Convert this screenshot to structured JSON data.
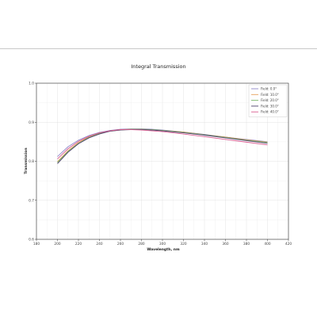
{
  "chart_data": {
    "type": "line",
    "title": "Integral Transmission",
    "xlabel": "Wavelength, nm",
    "ylabel": "Transmission",
    "xlim": [
      180,
      420
    ],
    "ylim": [
      0.6,
      1.0
    ],
    "xticks": [
      "180",
      "200",
      "220",
      "240",
      "260",
      "280",
      "300",
      "320",
      "340",
      "360",
      "380",
      "400",
      "420"
    ],
    "yticks": [
      "0.6",
      "0.7",
      "0.8",
      "0.9",
      "1.0"
    ],
    "grid": true,
    "legend_position": "top-right",
    "x": [
      200,
      210,
      220,
      230,
      240,
      250,
      260,
      270,
      280,
      290,
      300,
      320,
      340,
      360,
      380,
      400
    ],
    "series": [
      {
        "name": "Field: 0.0°",
        "color": "#8e86c9",
        "values": [
          0.812,
          0.837,
          0.854,
          0.866,
          0.874,
          0.879,
          0.882,
          0.883,
          0.883,
          0.882,
          0.88,
          0.875,
          0.869,
          0.862,
          0.856,
          0.85
        ]
      },
      {
        "name": "Field: 10.0°",
        "color": "#e6a15a",
        "values": [
          0.799,
          0.827,
          0.848,
          0.863,
          0.872,
          0.878,
          0.881,
          0.882,
          0.882,
          0.881,
          0.879,
          0.875,
          0.868,
          0.862,
          0.855,
          0.849
        ]
      },
      {
        "name": "Field: 20.0°",
        "color": "#7db86b",
        "values": [
          0.797,
          0.825,
          0.846,
          0.861,
          0.871,
          0.877,
          0.88,
          0.882,
          0.882,
          0.881,
          0.879,
          0.874,
          0.868,
          0.861,
          0.854,
          0.848
        ]
      },
      {
        "name": "Field: 30.0°",
        "color": "#4a3f6b",
        "values": [
          0.794,
          0.823,
          0.845,
          0.86,
          0.87,
          0.877,
          0.88,
          0.881,
          0.881,
          0.88,
          0.878,
          0.873,
          0.867,
          0.86,
          0.853,
          0.846
        ]
      },
      {
        "name": "Field: 40.0°",
        "color": "#d85a8f",
        "values": [
          0.806,
          0.832,
          0.851,
          0.864,
          0.873,
          0.878,
          0.881,
          0.881,
          0.88,
          0.878,
          0.876,
          0.87,
          0.863,
          0.856,
          0.849,
          0.842
        ]
      }
    ]
  }
}
